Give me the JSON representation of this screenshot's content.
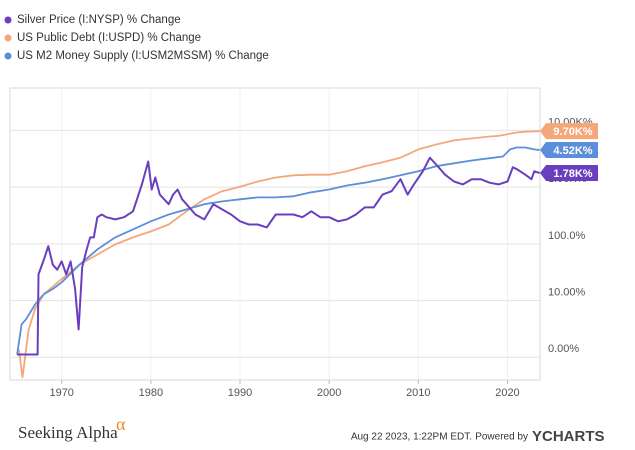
{
  "chart_data": {
    "type": "line",
    "yscale": "symlog",
    "linthresh": 10,
    "xlim": [
      1964.2,
      2023.65
    ],
    "xticks": [
      1970,
      1980,
      1990,
      2000,
      2010,
      2020
    ],
    "ylim": [
      -4,
      56000
    ],
    "yticks": [
      {
        "value": 0,
        "label": "0.00%"
      },
      {
        "value": 10,
        "label": "10.00%"
      },
      {
        "value": 100,
        "label": "100.0%"
      },
      {
        "value": 1000,
        "label": "1.00K%"
      },
      {
        "value": 10000,
        "label": "10.00K%"
      }
    ],
    "grid": true,
    "legend": "top-left",
    "series": [
      {
        "name": "Silver Price (I:NYSP) % Change",
        "color": "#6a3fbf",
        "end_label": "1.78K%",
        "x": [
          1965.0,
          1967.3,
          1967.4,
          1968.0,
          1968.5,
          1969.0,
          1969.5,
          1970.0,
          1970.5,
          1971.0,
          1971.5,
          1971.9,
          1972.3,
          1972.8,
          1973.2,
          1973.6,
          1974.0,
          1974.5,
          1975.0,
          1976.0,
          1977.0,
          1978.0,
          1979.0,
          1979.7,
          1980.1,
          1980.5,
          1981.0,
          1982.0,
          1982.5,
          1983.0,
          1983.5,
          1984.0,
          1985.0,
          1986.0,
          1987.0,
          1988.0,
          1989.0,
          1990.0,
          1991.0,
          1992.0,
          1993.0,
          1994.0,
          1995.0,
          1996.0,
          1997.0,
          1998.0,
          1999.0,
          2000.0,
          2001.0,
          2002.0,
          2003.0,
          2004.0,
          2005.0,
          2006.0,
          2007.0,
          2008.0,
          2008.8,
          2009.5,
          2010.5,
          2011.3,
          2012.0,
          2013.0,
          2014.0,
          2015.0,
          2016.0,
          2017.0,
          2018.0,
          2019.0,
          2020.0,
          2020.6,
          2021.0,
          2022.0,
          2022.7,
          2023.0,
          2023.6
        ],
        "values": [
          0.5,
          0.5,
          29,
          53,
          91,
          43,
          35,
          49,
          29,
          49,
          16,
          4.9,
          39,
          80,
          130,
          130,
          295,
          330,
          295,
          270,
          295,
          375,
          1120,
          2830,
          910,
          1480,
          740,
          500,
          740,
          910,
          610,
          500,
          330,
          270,
          500,
          405,
          330,
          250,
          220,
          220,
          195,
          330,
          330,
          330,
          295,
          375,
          295,
          295,
          250,
          270,
          330,
          440,
          440,
          740,
          850,
          1380,
          740,
          1120,
          1900,
          3310,
          2510,
          1660,
          1260,
          1120,
          1380,
          1380,
          1200,
          1120,
          1260,
          2240,
          2100,
          1660,
          1380,
          1900,
          1780
        ]
      },
      {
        "name": "US Public Debt (I:USPD) % Change",
        "color": "#f5a77a",
        "end_label": "9.70K%",
        "x": [
          1965.2,
          1965.6,
          1966.3,
          1967,
          1968,
          1970,
          1972,
          1974,
          1976,
          1978,
          1980,
          1982,
          1984,
          1986,
          1988,
          1990,
          1992,
          1994,
          1996,
          1998,
          2000,
          2002,
          2004,
          2006,
          2008,
          2010,
          2012,
          2014,
          2016,
          2018,
          2019,
          2020,
          2021,
          2022,
          2023.6
        ],
        "values": [
          1.4,
          -3.5,
          4.9,
          8.5,
          13,
          24,
          43,
          65,
          98,
          130,
          166,
          220,
          375,
          610,
          850,
          1020,
          1260,
          1480,
          1620,
          1660,
          1660,
          1900,
          2340,
          2740,
          3310,
          4640,
          5650,
          6660,
          7230,
          7830,
          8000,
          8600,
          9200,
          9500,
          9700
        ]
      },
      {
        "name": "US M2 Money Supply (I:USM2MSSM) % Change",
        "color": "#5b8fd9",
        "end_label": "4.52K%",
        "x": [
          1965,
          1965.5,
          1966,
          1967,
          1968,
          1969,
          1970,
          1972,
          1974,
          1976,
          1978,
          1980,
          1982,
          1984,
          1986,
          1988,
          1990,
          1992,
          1994,
          1996,
          1998,
          2000,
          2002,
          2004,
          2006,
          2008,
          2010,
          2012,
          2014,
          2016,
          2018,
          2019.5,
          2020.3,
          2021,
          2022,
          2023,
          2023.6
        ],
        "values": [
          0.5,
          5.8,
          6.7,
          9.3,
          13,
          16,
          21,
          43,
          80,
          130,
          180,
          250,
          330,
          405,
          500,
          560,
          610,
          660,
          660,
          690,
          810,
          910,
          1070,
          1200,
          1380,
          1620,
          1900,
          2340,
          2630,
          2950,
          3240,
          3470,
          4640,
          5010,
          5010,
          4640,
          4520
        ]
      }
    ]
  },
  "footer": {
    "brand": "Seeking Alpha",
    "brand_symbol": "α",
    "timestamp": "Aug 22 2023, 1:22PM EDT.",
    "powered_by": "Powered by",
    "provider": "YCHARTS"
  }
}
